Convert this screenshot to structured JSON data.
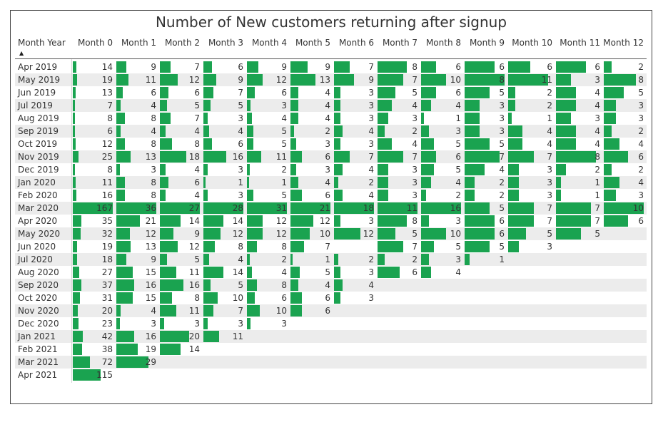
{
  "title": "Number of New customers returning after signup",
  "header": {
    "month_year": "Month Year",
    "months": [
      "Month 0",
      "Month 1",
      "Month 2",
      "Month 3",
      "Month 4",
      "Month 5",
      "Month 6",
      "Month 7",
      "Month 8",
      "Month 9",
      "Month 10",
      "Month 11",
      "Month 12"
    ]
  },
  "sort_icon": "sort-ascending-icon",
  "bar_color": "#1aa350",
  "rows": [
    {
      "label": "Apr 2019",
      "values": [
        14,
        9,
        7,
        6,
        9,
        9,
        7,
        8,
        6,
        6,
        6,
        6,
        2
      ]
    },
    {
      "label": "May 2019",
      "values": [
        19,
        11,
        12,
        9,
        12,
        13,
        9,
        7,
        10,
        8,
        11,
        3,
        8
      ]
    },
    {
      "label": "Jun 2019",
      "values": [
        13,
        6,
        6,
        7,
        6,
        4,
        3,
        5,
        6,
        5,
        2,
        4,
        5
      ]
    },
    {
      "label": "Jul 2019",
      "values": [
        7,
        4,
        5,
        5,
        3,
        4,
        3,
        4,
        4,
        3,
        2,
        4,
        3
      ]
    },
    {
      "label": "Aug 2019",
      "values": [
        8,
        8,
        7,
        3,
        4,
        4,
        3,
        3,
        1,
        3,
        1,
        3,
        3
      ]
    },
    {
      "label": "Sep 2019",
      "values": [
        6,
        4,
        4,
        4,
        5,
        2,
        4,
        2,
        3,
        3,
        4,
        4,
        2
      ]
    },
    {
      "label": "Oct 2019",
      "values": [
        12,
        8,
        8,
        6,
        5,
        3,
        3,
        4,
        5,
        5,
        4,
        4,
        4
      ]
    },
    {
      "label": "Nov 2019",
      "values": [
        25,
        13,
        18,
        16,
        11,
        6,
        7,
        7,
        6,
        7,
        7,
        8,
        6
      ]
    },
    {
      "label": "Dec 2019",
      "values": [
        8,
        3,
        4,
        3,
        2,
        3,
        4,
        3,
        5,
        4,
        3,
        2,
        2
      ]
    },
    {
      "label": "Jan 2020",
      "values": [
        11,
        8,
        6,
        1,
        1,
        4,
        2,
        3,
        4,
        2,
        3,
        1,
        4
      ]
    },
    {
      "label": "Feb 2020",
      "values": [
        16,
        8,
        4,
        3,
        5,
        6,
        4,
        3,
        2,
        2,
        3,
        1,
        3
      ]
    },
    {
      "label": "Mar 2020",
      "values": [
        167,
        36,
        27,
        28,
        31,
        21,
        18,
        11,
        16,
        5,
        7,
        7,
        10
      ]
    },
    {
      "label": "Apr 2020",
      "values": [
        35,
        21,
        14,
        14,
        12,
        12,
        3,
        8,
        3,
        6,
        7,
        7,
        6
      ]
    },
    {
      "label": "May 2020",
      "values": [
        32,
        12,
        9,
        12,
        12,
        10,
        12,
        5,
        10,
        6,
        5,
        5
      ]
    },
    {
      "label": "Jun 2020",
      "values": [
        19,
        13,
        12,
        8,
        8,
        7,
        null,
        7,
        5,
        5,
        3
      ]
    },
    {
      "label": "Jul 2020",
      "values": [
        18,
        9,
        5,
        4,
        2,
        1,
        2,
        2,
        3,
        1
      ]
    },
    {
      "label": "Aug 2020",
      "values": [
        27,
        15,
        11,
        14,
        4,
        5,
        3,
        6,
        4
      ]
    },
    {
      "label": "Sep 2020",
      "values": [
        37,
        16,
        16,
        5,
        8,
        4,
        4
      ]
    },
    {
      "label": "Oct 2020",
      "values": [
        31,
        15,
        8,
        10,
        6,
        6,
        3
      ]
    },
    {
      "label": "Nov 2020",
      "values": [
        20,
        4,
        11,
        7,
        10,
        6
      ]
    },
    {
      "label": "Dec 2020",
      "values": [
        23,
        3,
        3,
        3,
        3
      ]
    },
    {
      "label": "Jan 2021",
      "values": [
        42,
        16,
        20,
        11
      ]
    },
    {
      "label": "Feb 2021",
      "values": [
        38,
        19,
        14
      ]
    },
    {
      "label": "Mar 2021",
      "values": [
        72,
        29
      ]
    },
    {
      "label": "Apr 2021",
      "values": [
        115
      ]
    }
  ]
}
